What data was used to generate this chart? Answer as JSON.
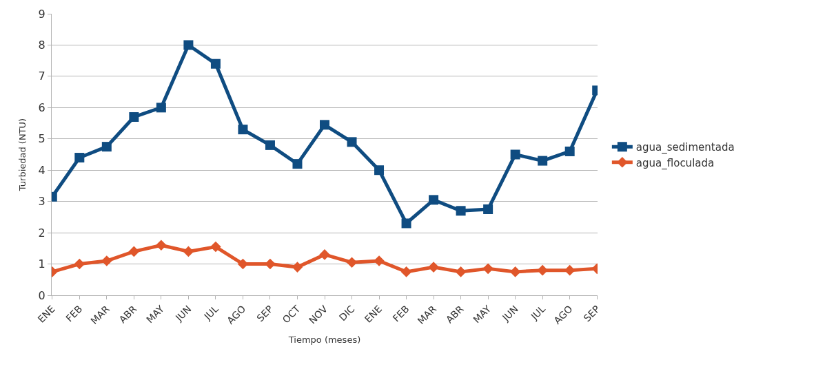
{
  "chart_data": {
    "type": "line",
    "xlabel": "Tiempo (meses)",
    "ylabel": "Turbiedad (NTU)",
    "categories": [
      "ENE",
      "FEB",
      "MAR",
      "ABR",
      "MAY",
      "JUN",
      "JUL",
      "AGO",
      "SEP",
      "OCT",
      "NOV",
      "DIC",
      "ENE",
      "FEB",
      "MAR",
      "ABR",
      "MAY",
      "JUN",
      "JUL",
      "AGO",
      "SEP"
    ],
    "series": [
      {
        "name": "agua_sedimentada",
        "color": "#0f4c81",
        "marker": "square",
        "values": [
          3.15,
          4.4,
          4.75,
          5.7,
          6.0,
          8.0,
          7.4,
          5.3,
          4.8,
          4.2,
          5.45,
          4.9,
          4.0,
          2.3,
          3.05,
          2.7,
          2.75,
          4.5,
          4.3,
          4.6,
          6.55
        ]
      },
      {
        "name": "agua_floculada",
        "color": "#e0562a",
        "marker": "diamond",
        "values": [
          0.75,
          1.0,
          1.1,
          1.4,
          1.6,
          1.4,
          1.55,
          1.0,
          1.0,
          0.9,
          1.3,
          1.05,
          1.1,
          0.75,
          0.9,
          0.75,
          0.85,
          0.75,
          0.8,
          0.8,
          0.85
        ]
      }
    ],
    "ylim": [
      0,
      9
    ],
    "yticks": [
      0,
      1,
      2,
      3,
      4,
      5,
      6,
      7,
      8,
      9
    ],
    "grid": "y",
    "legend": "right",
    "line_style": "solid"
  }
}
